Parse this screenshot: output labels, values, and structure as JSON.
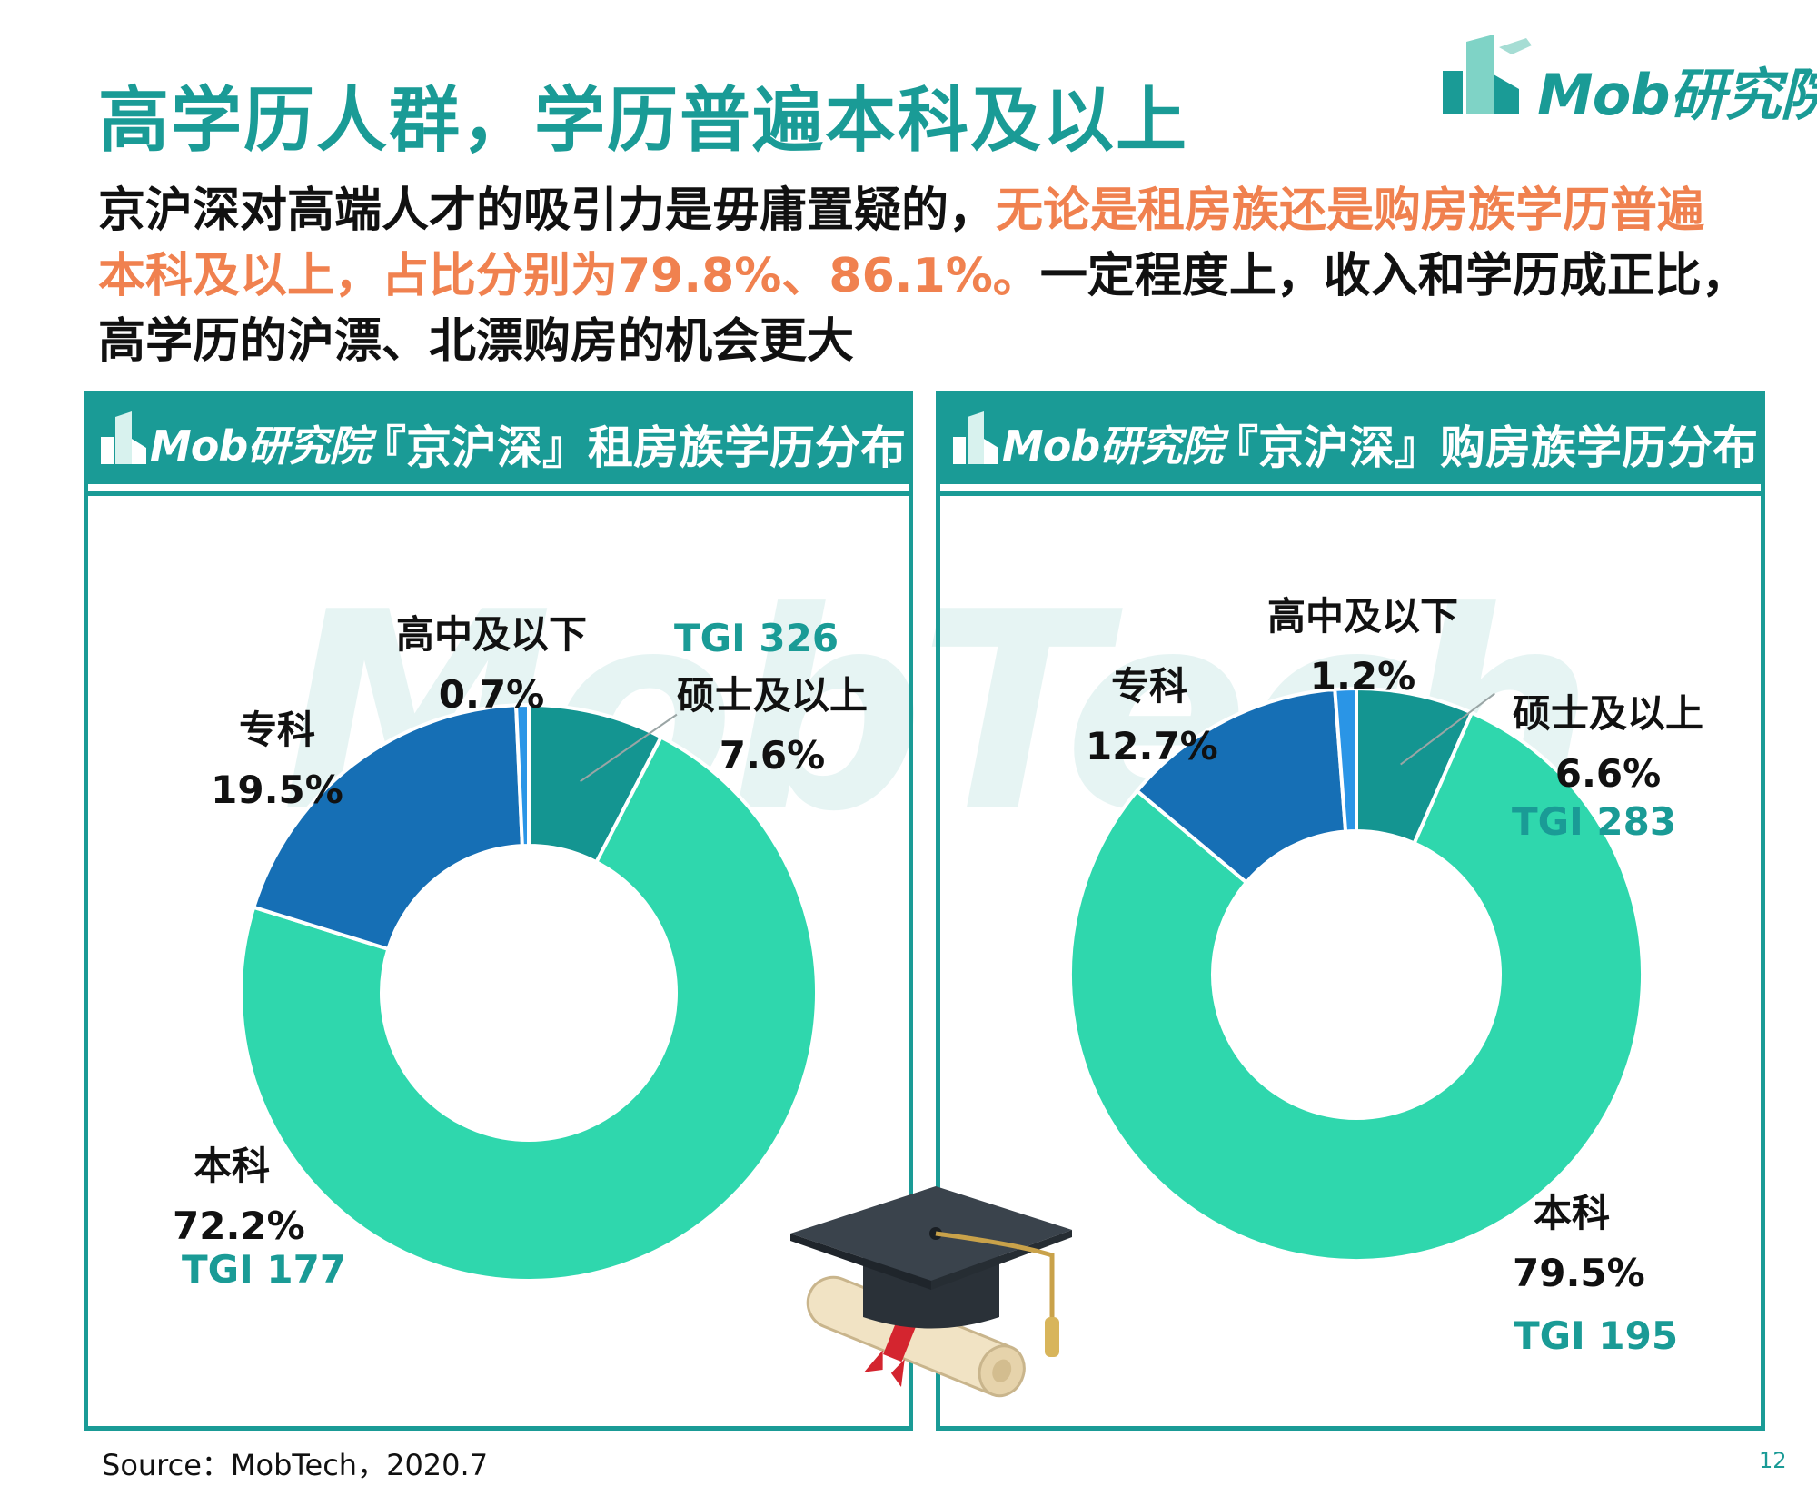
{
  "title": "高学历人群，学历普遍本科及以上",
  "logo_text": "Mob研究院",
  "description": {
    "part1": "京沪深对高端人才的吸引力是毋庸置疑的，",
    "highlight": "无论是租房族还是购房族学历普遍本科及以上，占比分别为79.8%、86.1%。",
    "part2": "一定程度上，收入和学历成正比，高学历的沪漂、北漂购房的机会更大"
  },
  "colors": {
    "teal": "#1a9b96",
    "master": "#149591",
    "bachelor": "#2fd7ad",
    "college": "#166fb5",
    "highschool": "#2a95e6",
    "highlight": "#f0814f"
  },
  "chart_data": [
    {
      "type": "pie",
      "title": "『京沪深』租房族学历分布",
      "header_logo": "Mob研究院",
      "categories": [
        "硕士及以上",
        "本科",
        "专科",
        "高中及以下"
      ],
      "values": [
        7.6,
        72.2,
        19.5,
        0.7
      ],
      "value_labels": [
        "7.6%",
        "72.2%",
        "19.5%",
        "0.7%"
      ],
      "tgi": {
        "硕士及以上": "TGI 326",
        "本科": "TGI 177"
      }
    },
    {
      "type": "pie",
      "title": "『京沪深』购房族学历分布",
      "header_logo": "Mob研究院",
      "categories": [
        "硕士及以上",
        "本科",
        "专科",
        "高中及以下"
      ],
      "values": [
        6.6,
        79.5,
        12.7,
        1.2
      ],
      "value_labels": [
        "6.6%",
        "79.5%",
        "12.7%",
        "1.2%"
      ],
      "tgi": {
        "硕士及以上": "TGI 283",
        "本科": "TGI 195"
      }
    }
  ],
  "watermark": "MobTech",
  "source": "Source：MobTech，2020.7",
  "page_number": "12"
}
